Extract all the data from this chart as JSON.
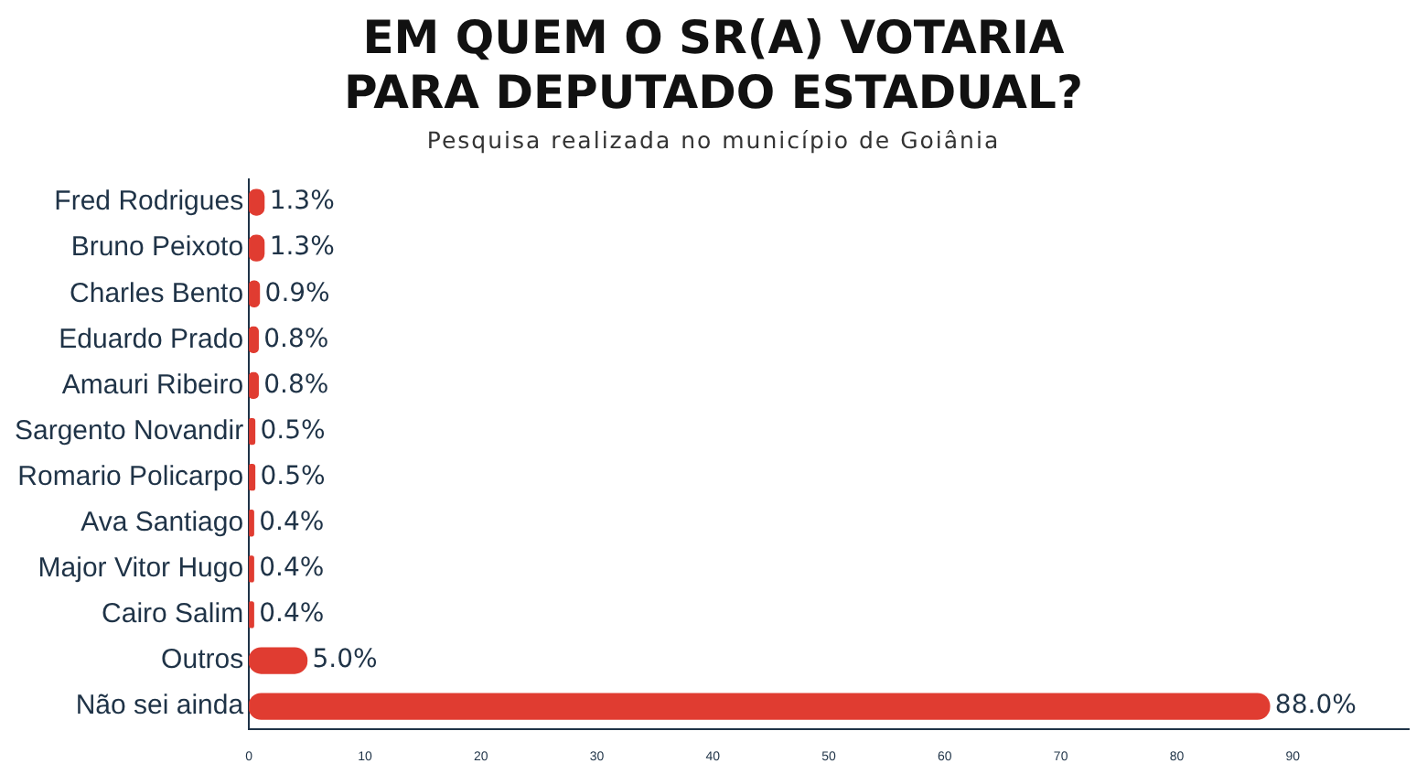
{
  "chart_data": {
    "type": "bar",
    "orientation": "horizontal",
    "title": "EM QUEM O SR(A) VOTARIA PARA DEPUTADO ESTADUAL?",
    "subtitle": "Pesquisa realizada no município de Goiânia",
    "categories": [
      "Fred Rodrigues",
      "Bruno Peixoto",
      "Charles Bento",
      "Eduardo Prado",
      "Amauri Ribeiro",
      "Sargento Novandir",
      "Romario Policarpo",
      "Ava Santiago",
      "Major Vitor Hugo",
      "Cairo Salim",
      "Outros",
      "Não sei ainda"
    ],
    "values": [
      1.3,
      1.3,
      0.9,
      0.8,
      0.8,
      0.5,
      0.5,
      0.4,
      0.4,
      0.4,
      5.0,
      88.0
    ],
    "value_labels": [
      "1.3%",
      "1.3%",
      "0.9%",
      "0.8%",
      "0.8%",
      "0.5%",
      "0.5%",
      "0.4%",
      "0.4%",
      "0.4%",
      "5.0%",
      "88.0%"
    ],
    "color": "#e03c31",
    "xlim": [
      0,
      100
    ],
    "xticks": [
      0,
      10,
      20,
      30,
      40,
      50,
      60,
      70,
      80,
      90
    ],
    "grid": false,
    "legend": false
  }
}
